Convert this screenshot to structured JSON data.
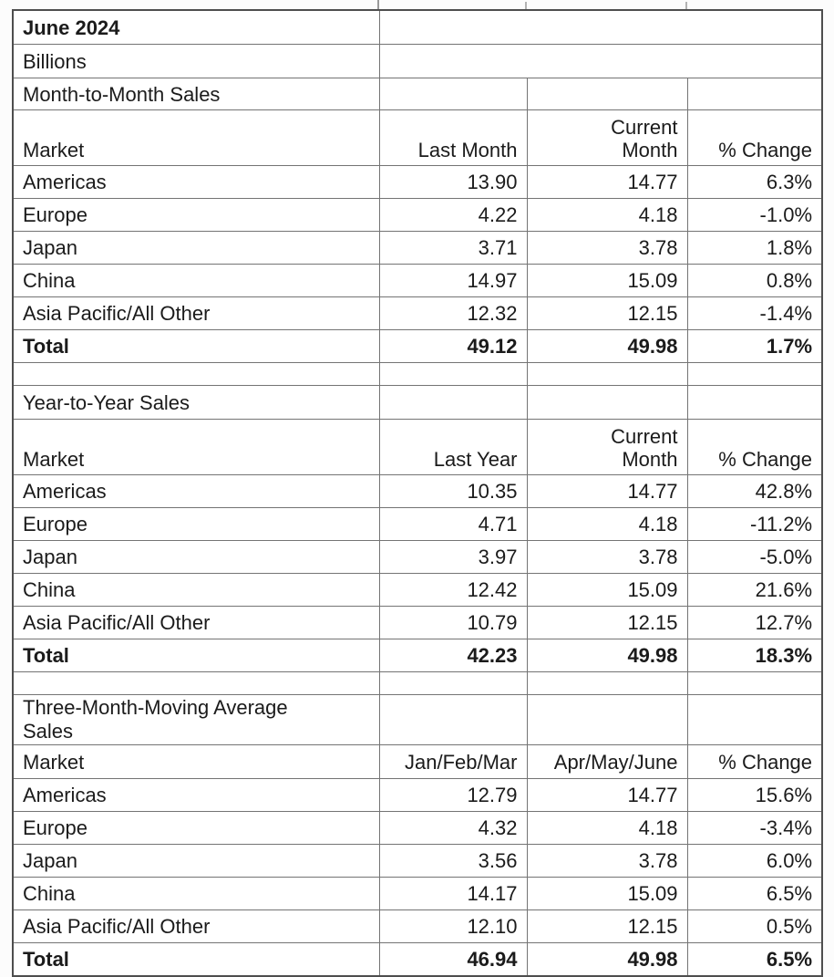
{
  "table": {
    "title": "June 2024",
    "units_label": "Billions",
    "sections": [
      {
        "label": "Month-to-Month Sales",
        "header": {
          "market": "Market",
          "prev": "Last Month",
          "cur_line1": "Current",
          "cur_line2": "Month",
          "pct": "% Change"
        },
        "rows": [
          {
            "market": "Americas",
            "prev": "13.90",
            "cur": "14.77",
            "pct": "6.3%"
          },
          {
            "market": "Europe",
            "prev": "4.22",
            "cur": "4.18",
            "pct": "-1.0%"
          },
          {
            "market": "Japan",
            "prev": "3.71",
            "cur": "3.78",
            "pct": "1.8%"
          },
          {
            "market": "China",
            "prev": "14.97",
            "cur": "15.09",
            "pct": "0.8%"
          },
          {
            "market": "Asia Pacific/All Other",
            "prev": "12.32",
            "cur": "12.15",
            "pct": "-1.4%"
          }
        ],
        "total": {
          "market": "Total",
          "prev": "49.12",
          "cur": "49.98",
          "pct": "1.7%"
        }
      },
      {
        "label": "Year-to-Year Sales",
        "header": {
          "market": "Market",
          "prev": "Last Year",
          "cur_line1": "Current",
          "cur_line2": "Month",
          "pct": "% Change"
        },
        "rows": [
          {
            "market": "Americas",
            "prev": "10.35",
            "cur": "14.77",
            "pct": "42.8%"
          },
          {
            "market": "Europe",
            "prev": "4.71",
            "cur": "4.18",
            "pct": "-11.2%"
          },
          {
            "market": "Japan",
            "prev": "3.97",
            "cur": "3.78",
            "pct": "-5.0%"
          },
          {
            "market": "China",
            "prev": "12.42",
            "cur": "15.09",
            "pct": "21.6%"
          },
          {
            "market": "Asia Pacific/All Other",
            "prev": "10.79",
            "cur": "12.15",
            "pct": "12.7%"
          }
        ],
        "total": {
          "market": "Total",
          "prev": "42.23",
          "cur": "49.98",
          "pct": "18.3%"
        }
      },
      {
        "label": "Three-Month-Moving Average Sales",
        "header": {
          "market": "Market",
          "prev": "Jan/Feb/Mar",
          "cur": "Apr/May/June",
          "pct": "% Change"
        },
        "rows": [
          {
            "market": "Americas",
            "prev": "12.79",
            "cur": "14.77",
            "pct": "15.6%"
          },
          {
            "market": "Europe",
            "prev": "4.32",
            "cur": "4.18",
            "pct": "-3.4%"
          },
          {
            "market": "Japan",
            "prev": "3.56",
            "cur": "3.78",
            "pct": "6.0%"
          },
          {
            "market": "China",
            "prev": "14.17",
            "cur": "15.09",
            "pct": "6.5%"
          },
          {
            "market": "Asia Pacific/All Other",
            "prev": "12.10",
            "cur": "12.15",
            "pct": "0.5%"
          }
        ],
        "total": {
          "market": "Total",
          "prev": "46.94",
          "cur": "49.98",
          "pct": "6.5%"
        }
      }
    ]
  },
  "chart_data": {
    "type": "table",
    "title": "June 2024",
    "units": "Billions",
    "sections": [
      {
        "name": "Month-to-Month Sales",
        "columns": [
          "Market",
          "Last Month",
          "Current Month",
          "% Change"
        ],
        "rows": [
          [
            "Americas",
            13.9,
            14.77,
            "6.3%"
          ],
          [
            "Europe",
            4.22,
            4.18,
            "-1.0%"
          ],
          [
            "Japan",
            3.71,
            3.78,
            "1.8%"
          ],
          [
            "China",
            14.97,
            15.09,
            "0.8%"
          ],
          [
            "Asia Pacific/All Other",
            12.32,
            12.15,
            "-1.4%"
          ],
          [
            "Total",
            49.12,
            49.98,
            "1.7%"
          ]
        ]
      },
      {
        "name": "Year-to-Year Sales",
        "columns": [
          "Market",
          "Last Year",
          "Current Month",
          "% Change"
        ],
        "rows": [
          [
            "Americas",
            10.35,
            14.77,
            "42.8%"
          ],
          [
            "Europe",
            4.71,
            4.18,
            "-11.2%"
          ],
          [
            "Japan",
            3.97,
            3.78,
            "-5.0%"
          ],
          [
            "China",
            12.42,
            15.09,
            "21.6%"
          ],
          [
            "Asia Pacific/All Other",
            10.79,
            12.15,
            "12.7%"
          ],
          [
            "Total",
            42.23,
            49.98,
            "18.3%"
          ]
        ]
      },
      {
        "name": "Three-Month-Moving Average Sales",
        "columns": [
          "Market",
          "Jan/Feb/Mar",
          "Apr/May/June",
          "% Change"
        ],
        "rows": [
          [
            "Americas",
            12.79,
            14.77,
            "15.6%"
          ],
          [
            "Europe",
            4.32,
            4.18,
            "-3.4%"
          ],
          [
            "Japan",
            3.56,
            3.78,
            "6.0%"
          ],
          [
            "China",
            14.17,
            15.09,
            "6.5%"
          ],
          [
            "Asia Pacific/All Other",
            12.1,
            12.15,
            "0.5%"
          ],
          [
            "Total",
            46.94,
            49.98,
            "6.5%"
          ]
        ]
      }
    ]
  }
}
